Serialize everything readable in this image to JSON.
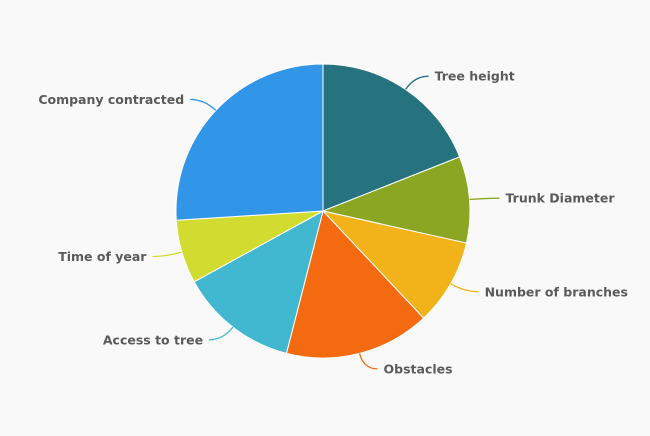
{
  "chart_data": {
    "type": "pie",
    "title": "",
    "legend": "none",
    "slices": [
      {
        "label": "Tree height",
        "value": 19,
        "color": "#26737f"
      },
      {
        "label": "Trunk Diameter",
        "value": 9.5,
        "color": "#8aa622"
      },
      {
        "label": "Number of branches",
        "value": 9.5,
        "color": "#f2b31a"
      },
      {
        "label": "Obstacles",
        "value": 16,
        "color": "#f46a10"
      },
      {
        "label": "Access to tree",
        "value": 13,
        "color": "#41b8cf"
      },
      {
        "label": "Time of year",
        "value": 7,
        "color": "#d2dc30"
      },
      {
        "label": "Company contracted",
        "value": 26,
        "color": "#3196e8"
      }
    ]
  }
}
